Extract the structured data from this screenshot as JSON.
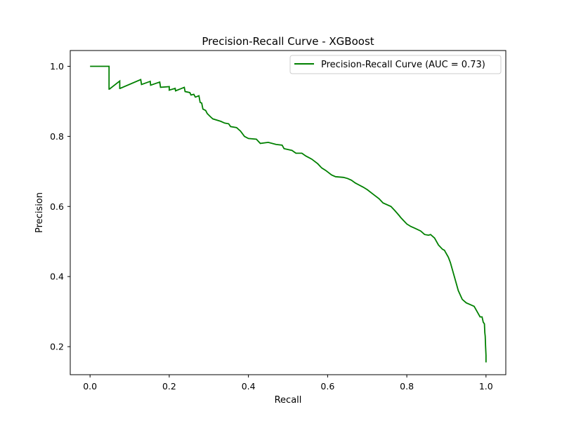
{
  "chart_data": {
    "type": "line",
    "title": "Precision-Recall Curve - XGBoost",
    "xlabel": "Recall",
    "ylabel": "Precision",
    "xlim": [
      -0.05,
      1.05
    ],
    "ylim": [
      0.12,
      1.045
    ],
    "x_ticks": [
      0.0,
      0.2,
      0.4,
      0.6,
      0.8,
      1.0
    ],
    "x_tick_labels": [
      "0.0",
      "0.2",
      "0.4",
      "0.6",
      "0.8",
      "1.0"
    ],
    "y_ticks": [
      0.2,
      0.4,
      0.6,
      0.8,
      1.0
    ],
    "y_tick_labels": [
      "0.2",
      "0.4",
      "0.6",
      "0.8",
      "1.0"
    ],
    "grid": false,
    "legend": {
      "position": "top-right",
      "entries": [
        "Precision-Recall Curve (AUC = 0.73)"
      ]
    },
    "series": [
      {
        "name": "Precision-Recall Curve (AUC = 0.73)",
        "color": "#008000",
        "x": [
          0.0,
          0.048,
          0.048,
          0.049,
          0.075,
          0.075,
          0.076,
          0.128,
          0.13,
          0.152,
          0.153,
          0.176,
          0.178,
          0.2,
          0.2,
          0.215,
          0.216,
          0.238,
          0.24,
          0.252,
          0.255,
          0.262,
          0.266,
          0.275,
          0.278,
          0.282,
          0.285,
          0.292,
          0.296,
          0.305,
          0.31,
          0.33,
          0.34,
          0.35,
          0.355,
          0.37,
          0.38,
          0.39,
          0.4,
          0.42,
          0.43,
          0.45,
          0.47,
          0.485,
          0.49,
          0.51,
          0.52,
          0.535,
          0.545,
          0.555,
          0.56,
          0.575,
          0.585,
          0.595,
          0.61,
          0.62,
          0.64,
          0.65,
          0.66,
          0.67,
          0.69,
          0.7,
          0.715,
          0.73,
          0.74,
          0.76,
          0.77,
          0.78,
          0.785,
          0.8,
          0.81,
          0.82,
          0.835,
          0.845,
          0.855,
          0.86,
          0.87,
          0.88,
          0.89,
          0.895,
          0.9,
          0.905,
          0.91,
          0.915,
          0.92,
          0.925,
          0.93,
          0.94,
          0.95,
          0.96,
          0.97,
          0.975,
          0.98,
          0.985,
          0.99,
          0.993,
          0.996,
          0.997,
          0.998,
          0.999,
          1.0,
          1.0
        ],
        "y": [
          1.0,
          1.0,
          0.935,
          0.935,
          0.958,
          0.937,
          0.937,
          0.962,
          0.948,
          0.957,
          0.946,
          0.955,
          0.94,
          0.942,
          0.932,
          0.937,
          0.93,
          0.94,
          0.928,
          0.925,
          0.918,
          0.92,
          0.912,
          0.916,
          0.897,
          0.895,
          0.878,
          0.874,
          0.865,
          0.855,
          0.85,
          0.843,
          0.838,
          0.836,
          0.828,
          0.825,
          0.815,
          0.8,
          0.794,
          0.792,
          0.78,
          0.783,
          0.777,
          0.775,
          0.765,
          0.76,
          0.752,
          0.752,
          0.744,
          0.738,
          0.735,
          0.722,
          0.71,
          0.703,
          0.69,
          0.685,
          0.683,
          0.68,
          0.675,
          0.667,
          0.655,
          0.648,
          0.635,
          0.622,
          0.61,
          0.6,
          0.588,
          0.575,
          0.568,
          0.55,
          0.543,
          0.538,
          0.53,
          0.52,
          0.518,
          0.52,
          0.51,
          0.49,
          0.478,
          0.475,
          0.465,
          0.455,
          0.44,
          0.42,
          0.4,
          0.38,
          0.36,
          0.335,
          0.325,
          0.32,
          0.315,
          0.305,
          0.295,
          0.285,
          0.285,
          0.27,
          0.265,
          0.24,
          0.23,
          0.2,
          0.175,
          0.155
        ]
      }
    ]
  }
}
